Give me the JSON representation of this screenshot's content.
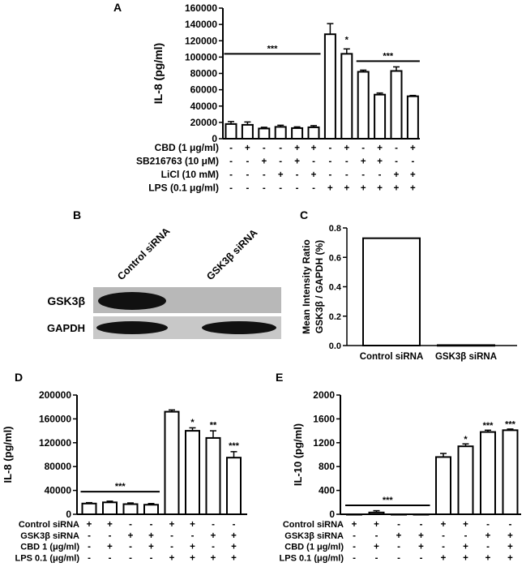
{
  "chart_data": [
    {
      "panel": "A",
      "type": "bar",
      "ylabel": "IL-8 (pg/ml)",
      "ylim": [
        0,
        160000
      ],
      "yticks": [
        "0",
        "20000",
        "40000",
        "60000",
        "80000",
        "100000",
        "120000",
        "140000",
        "160000"
      ],
      "values": [
        18000,
        17000,
        12500,
        14500,
        13000,
        14000,
        128000,
        104000,
        82000,
        54000,
        83000,
        52000
      ],
      "errors": [
        3000,
        3500,
        1500,
        2000,
        1500,
        2000,
        13000,
        6000,
        2000,
        2000,
        5000,
        1000
      ],
      "treatments": [
        {
          "label": "CBD (1 μg/ml)",
          "marks": [
            "-",
            "+",
            "-",
            "-",
            "+",
            "+",
            "-",
            "+",
            "-",
            "+",
            "-",
            "+"
          ]
        },
        {
          "label": "SB216763 (10 μM)",
          "marks": [
            "-",
            "-",
            "+",
            "-",
            "+",
            "-",
            "-",
            "-",
            "+",
            "+",
            "-",
            "-"
          ]
        },
        {
          "label": "LiCl (10 mM)",
          "marks": [
            "-",
            "-",
            "-",
            "+",
            "-",
            "+",
            "-",
            "-",
            "-",
            "-",
            "+",
            "+"
          ]
        },
        {
          "label": "LPS (0.1 μg/ml)",
          "marks": [
            "-",
            "-",
            "-",
            "-",
            "-",
            "-",
            "+",
            "+",
            "+",
            "+",
            "+",
            "+"
          ]
        }
      ],
      "annotations": [
        {
          "text": "***",
          "from": 0,
          "to": 5,
          "y": 104000,
          "line": true
        },
        {
          "text": "*",
          "from": 7,
          "to": 7,
          "y": 118000,
          "line": false
        },
        {
          "text": "***",
          "from": 8,
          "to": 11,
          "y": 95000,
          "line": true
        }
      ]
    },
    {
      "panel": "B",
      "type": "blot",
      "lanes": [
        "Control siRNA",
        "GSK3β siRNA"
      ],
      "bands": [
        "GSK3β",
        "GAPDH"
      ]
    },
    {
      "panel": "C",
      "type": "bar",
      "ylabel": "Mean Intensity Ratio GSK3β / GAPDH (%)",
      "ylabel_lines": [
        "Mean Intensity Ratio",
        "GSK3β / GAPDH (%)"
      ],
      "ylim": [
        0,
        0.8
      ],
      "yticks": [
        "0.0",
        "0.2",
        "0.4",
        "0.6",
        "0.8"
      ],
      "categories": [
        "Control siRNA",
        "GSK3β siRNA"
      ],
      "values": [
        0.73,
        0.003
      ]
    },
    {
      "panel": "D",
      "type": "bar",
      "ylabel": "IL-8 (pg/ml)",
      "ylim": [
        0,
        200000
      ],
      "yticks": [
        "0",
        "40000",
        "80000",
        "120000",
        "160000",
        "200000"
      ],
      "values": [
        18000,
        20000,
        17000,
        16000,
        172000,
        140000,
        128000,
        95000
      ],
      "errors": [
        1500,
        2000,
        2000,
        2000,
        3000,
        5000,
        12000,
        10000
      ],
      "treatments": [
        {
          "label": "Control siRNA",
          "marks": [
            "+",
            "+",
            "-",
            "-",
            "+",
            "+",
            "-",
            "-"
          ]
        },
        {
          "label": "GSK3β siRNA",
          "marks": [
            "-",
            "-",
            "+",
            "+",
            "-",
            "-",
            "+",
            "+"
          ]
        },
        {
          "label": "CBD 1 (μg/ml)",
          "marks": [
            "-",
            "+",
            "-",
            "+",
            "-",
            "+",
            "-",
            "+"
          ]
        },
        {
          "label": "LPS 0.1 (μg/ml)",
          "marks": [
            "-",
            "-",
            "-",
            "-",
            "+",
            "+",
            "+",
            "+"
          ]
        }
      ],
      "annotations": [
        {
          "text": "***",
          "from": 0,
          "to": 3,
          "y": 38000,
          "line": true
        },
        {
          "text": "*",
          "from": 5,
          "to": 5,
          "y": 150000,
          "line": false
        },
        {
          "text": "**",
          "from": 6,
          "to": 6,
          "y": 145000,
          "line": false
        },
        {
          "text": "***",
          "from": 7,
          "to": 7,
          "y": 110000,
          "line": false
        }
      ]
    },
    {
      "panel": "E",
      "type": "bar",
      "ylabel": "IL-10 (pg/ml)",
      "ylim": [
        0,
        2000
      ],
      "yticks": [
        "0",
        "400",
        "800",
        "1200",
        "1600",
        "2000"
      ],
      "values": [
        0,
        30,
        0,
        0,
        960,
        1140,
        1380,
        1410
      ],
      "errors": [
        0,
        30,
        0,
        0,
        60,
        40,
        30,
        20
      ],
      "treatments": [
        {
          "label": "Control siRNA",
          "marks": [
            "+",
            "+",
            "-",
            "-",
            "+",
            "+",
            "-",
            "-"
          ]
        },
        {
          "label": "GSK3β siRNA",
          "marks": [
            "-",
            "-",
            "+",
            "+",
            "-",
            "-",
            "+",
            "+"
          ]
        },
        {
          "label": "CBD (1 μg/ml)",
          "marks": [
            "-",
            "+",
            "-",
            "+",
            "-",
            "+",
            "-",
            "+"
          ]
        },
        {
          "label": "LPS 0.1 (μg/ml)",
          "marks": [
            "-",
            "-",
            "-",
            "-",
            "+",
            "+",
            "+",
            "+"
          ]
        }
      ],
      "annotations": [
        {
          "text": "***",
          "from": 0,
          "to": 3,
          "y": 150,
          "line": true
        },
        {
          "text": "*",
          "from": 5,
          "to": 5,
          "y": 1210,
          "line": false
        },
        {
          "text": "***",
          "from": 6,
          "to": 6,
          "y": 1440,
          "line": false
        },
        {
          "text": "***",
          "from": 7,
          "to": 7,
          "y": 1460,
          "line": false
        }
      ]
    }
  ],
  "panel_labels": {
    "a": "A",
    "b": "B",
    "c": "C",
    "d": "D",
    "e": "E"
  }
}
